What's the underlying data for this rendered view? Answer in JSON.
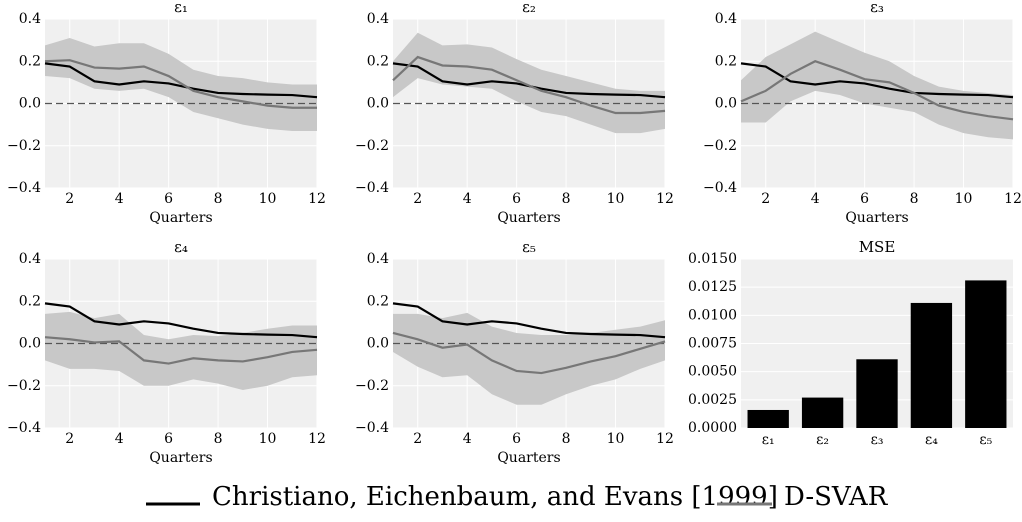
{
  "chart_data": [
    {
      "type": "line",
      "title": "ε₁",
      "xlabel": "Quarters",
      "x": [
        1,
        2,
        3,
        4,
        5,
        6,
        7,
        8,
        9,
        10,
        11,
        12
      ],
      "xlim": [
        1,
        12
      ],
      "xticks": [
        2,
        4,
        6,
        8,
        10,
        12
      ],
      "ylim": [
        -0.4,
        0.4
      ],
      "yticks": [
        {
          "value": -0.4,
          "label": "−0.4"
        },
        {
          "value": -0.2,
          "label": "−0.2"
        },
        {
          "value": 0,
          "label": "0.0"
        },
        0.2,
        0.4
      ],
      "reference_line": 0,
      "grid": true,
      "band": {
        "color": "#c8c8c8",
        "upper": [
          0.275,
          0.31,
          0.27,
          0.285,
          0.285,
          0.235,
          0.16,
          0.13,
          0.12,
          0.1,
          0.09,
          0.09
        ],
        "lower": [
          0.13,
          0.12,
          0.07,
          0.06,
          0.07,
          0.03,
          -0.04,
          -0.07,
          -0.1,
          -0.12,
          -0.13,
          -0.13
        ]
      },
      "series": [
        {
          "color": "#000000",
          "values": [
            0.19,
            0.175,
            0.105,
            0.09,
            0.105,
            0.095,
            0.07,
            0.05,
            0.045,
            0.042,
            0.04,
            0.03
          ]
        },
        {
          "color": "#777777",
          "values": [
            0.2,
            0.205,
            0.17,
            0.165,
            0.175,
            0.13,
            0.06,
            0.03,
            0.01,
            -0.01,
            -0.02,
            -0.02
          ]
        }
      ]
    },
    {
      "type": "line",
      "title": "ε₂",
      "xlabel": "Quarters",
      "x": [
        1,
        2,
        3,
        4,
        5,
        6,
        7,
        8,
        9,
        10,
        11,
        12
      ],
      "xlim": [
        1,
        12
      ],
      "xticks": [
        2,
        4,
        6,
        8,
        10,
        12
      ],
      "ylim": [
        -0.4,
        0.4
      ],
      "yticks": [
        {
          "value": -0.4,
          "label": "−0.4"
        },
        {
          "value": -0.2,
          "label": "−0.2"
        },
        {
          "value": 0,
          "label": "0.0"
        },
        0.2,
        0.4
      ],
      "reference_line": 0,
      "grid": true,
      "band": {
        "color": "#c8c8c8",
        "upper": [
          0.2,
          0.335,
          0.275,
          0.28,
          0.265,
          0.21,
          0.16,
          0.13,
          0.1,
          0.07,
          0.06,
          0.06
        ],
        "lower": [
          0.03,
          0.12,
          0.09,
          0.08,
          0.07,
          0.01,
          -0.04,
          -0.06,
          -0.1,
          -0.14,
          -0.14,
          -0.12
        ]
      },
      "series": [
        {
          "color": "#000000",
          "values": [
            0.19,
            0.175,
            0.105,
            0.09,
            0.105,
            0.095,
            0.07,
            0.05,
            0.045,
            0.042,
            0.04,
            0.03
          ]
        },
        {
          "color": "#777777",
          "values": [
            0.11,
            0.22,
            0.18,
            0.175,
            0.16,
            0.11,
            0.06,
            0.03,
            -0.01,
            -0.045,
            -0.045,
            -0.035
          ]
        }
      ]
    },
    {
      "type": "line",
      "title": "ε₃",
      "xlabel": "Quarters",
      "x": [
        1,
        2,
        3,
        4,
        5,
        6,
        7,
        8,
        9,
        10,
        11,
        12
      ],
      "xlim": [
        1,
        12
      ],
      "xticks": [
        2,
        4,
        6,
        8,
        10,
        12
      ],
      "ylim": [
        -0.4,
        0.4
      ],
      "yticks": [
        {
          "value": -0.4,
          "label": "−0.4"
        },
        {
          "value": -0.2,
          "label": "−0.2"
        },
        {
          "value": 0,
          "label": "0.0"
        },
        0.2,
        0.4
      ],
      "reference_line": 0,
      "grid": true,
      "band": {
        "color": "#c8c8c8",
        "upper": [
          0.11,
          0.22,
          0.28,
          0.34,
          0.29,
          0.24,
          0.2,
          0.13,
          0.08,
          0.06,
          0.05,
          0.04
        ],
        "lower": [
          -0.09,
          -0.09,
          0.01,
          0.06,
          0.04,
          0.0,
          -0.02,
          -0.04,
          -0.1,
          -0.14,
          -0.16,
          -0.17
        ]
      },
      "series": [
        {
          "color": "#000000",
          "values": [
            0.19,
            0.175,
            0.105,
            0.09,
            0.105,
            0.095,
            0.07,
            0.05,
            0.045,
            0.042,
            0.04,
            0.03
          ]
        },
        {
          "color": "#777777",
          "values": [
            0.01,
            0.06,
            0.14,
            0.2,
            0.16,
            0.115,
            0.1,
            0.05,
            -0.01,
            -0.04,
            -0.06,
            -0.075
          ]
        }
      ]
    },
    {
      "type": "line",
      "title": "ε₄",
      "xlabel": "Quarters",
      "x": [
        1,
        2,
        3,
        4,
        5,
        6,
        7,
        8,
        9,
        10,
        11,
        12
      ],
      "xlim": [
        1,
        12
      ],
      "xticks": [
        2,
        4,
        6,
        8,
        10,
        12
      ],
      "ylim": [
        -0.4,
        0.4
      ],
      "yticks": [
        {
          "value": -0.4,
          "label": "−0.4"
        },
        {
          "value": -0.2,
          "label": "−0.2"
        },
        {
          "value": 0,
          "label": "0.0"
        },
        0.2,
        0.4
      ],
      "reference_line": 0,
      "grid": true,
      "band": {
        "color": "#c8c8c8",
        "upper": [
          0.14,
          0.15,
          0.12,
          0.14,
          0.04,
          0.02,
          0.04,
          0.035,
          0.05,
          0.07,
          0.085,
          0.085
        ],
        "lower": [
          -0.08,
          -0.12,
          -0.12,
          -0.13,
          -0.2,
          -0.2,
          -0.17,
          -0.19,
          -0.22,
          -0.2,
          -0.16,
          -0.15
        ]
      },
      "series": [
        {
          "color": "#000000",
          "values": [
            0.19,
            0.175,
            0.105,
            0.09,
            0.105,
            0.095,
            0.07,
            0.05,
            0.045,
            0.042,
            0.04,
            0.03
          ]
        },
        {
          "color": "#777777",
          "values": [
            0.03,
            0.02,
            0.005,
            0.01,
            -0.08,
            -0.095,
            -0.07,
            -0.08,
            -0.085,
            -0.065,
            -0.04,
            -0.03
          ]
        }
      ]
    },
    {
      "type": "line",
      "title": "ε₅",
      "xlabel": "Quarters",
      "x": [
        1,
        2,
        3,
        4,
        5,
        6,
        7,
        8,
        9,
        10,
        11,
        12
      ],
      "xlim": [
        1,
        12
      ],
      "xticks": [
        2,
        4,
        6,
        8,
        10,
        12
      ],
      "ylim": [
        -0.4,
        0.4
      ],
      "yticks": [
        {
          "value": -0.4,
          "label": "−0.4"
        },
        {
          "value": -0.2,
          "label": "−0.2"
        },
        {
          "value": 0,
          "label": "0.0"
        },
        0.2,
        0.4
      ],
      "reference_line": 0,
      "grid": true,
      "band": {
        "color": "#c8c8c8",
        "upper": [
          0.14,
          0.14,
          0.12,
          0.145,
          0.08,
          0.05,
          0.04,
          0.04,
          0.05,
          0.065,
          0.08,
          0.11
        ],
        "lower": [
          -0.04,
          -0.11,
          -0.16,
          -0.15,
          -0.24,
          -0.29,
          -0.29,
          -0.24,
          -0.2,
          -0.17,
          -0.12,
          -0.08
        ]
      },
      "series": [
        {
          "color": "#000000",
          "values": [
            0.19,
            0.175,
            0.105,
            0.09,
            0.105,
            0.095,
            0.07,
            0.05,
            0.045,
            0.042,
            0.04,
            0.03
          ]
        },
        {
          "color": "#777777",
          "values": [
            0.05,
            0.02,
            -0.02,
            -0.005,
            -0.08,
            -0.13,
            -0.14,
            -0.115,
            -0.085,
            -0.06,
            -0.025,
            0.01
          ]
        }
      ]
    },
    {
      "type": "bar",
      "title": "MSE",
      "categories": [
        "ε₁",
        "ε₂",
        "ε₃",
        "ε₄",
        "ε₅"
      ],
      "values": [
        0.0016,
        0.0027,
        0.0061,
        0.0111,
        0.0131
      ],
      "color": "#000000",
      "ylim": [
        0,
        0.015
      ],
      "yticks": [
        {
          "value": 0,
          "label": "0.0000"
        },
        {
          "value": 0.0025,
          "label": "0.0025"
        },
        {
          "value": 0.005,
          "label": "0.0050"
        },
        {
          "value": 0.0075,
          "label": "0.0075"
        },
        {
          "value": 0.01,
          "label": "0.0100"
        },
        {
          "value": 0.0125,
          "label": "0.0125"
        },
        {
          "value": 0.015,
          "label": "0.0150"
        }
      ],
      "grid": true
    }
  ],
  "legend": [
    {
      "name": "Christiano, Eichenbaum, and Evans [1999]",
      "color": "#000000"
    },
    {
      "name": "D-SVAR",
      "color": "#777777"
    }
  ]
}
